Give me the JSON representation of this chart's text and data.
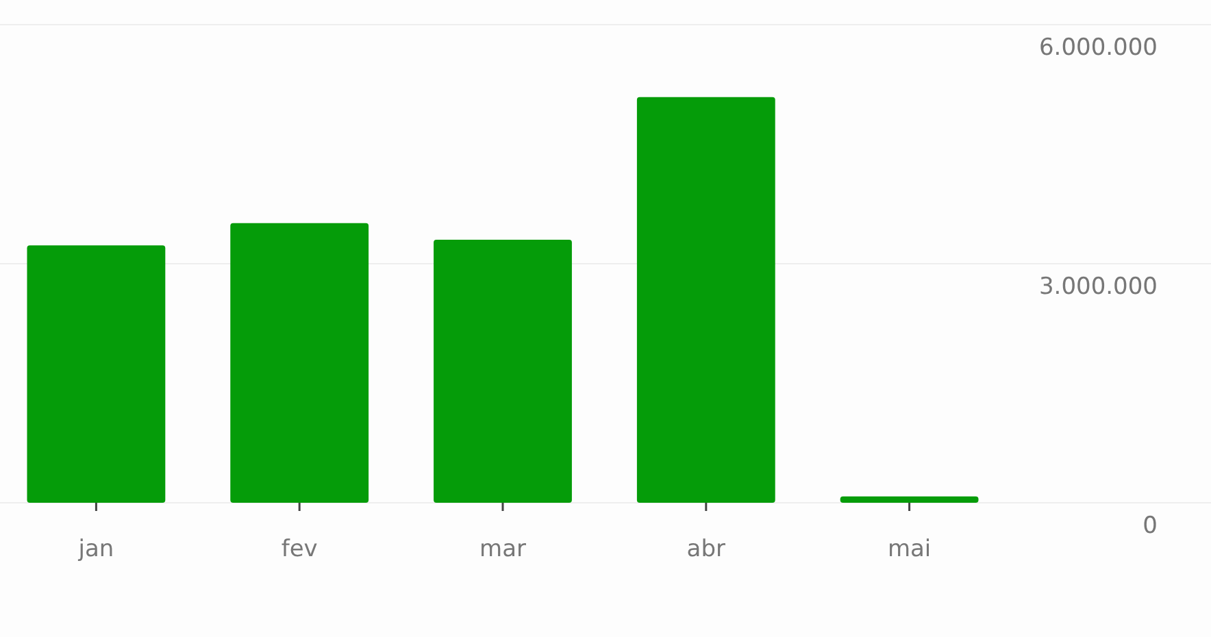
{
  "chart_data": {
    "type": "bar",
    "categories": [
      "jan",
      "fev",
      "mar",
      "abr",
      "mai"
    ],
    "values": [
      3230000,
      3510000,
      3300000,
      5090000,
      80000
    ],
    "color": "#059c09",
    "ylim": [
      0,
      6000000
    ],
    "yticks": [
      {
        "value": 0,
        "label": "0"
      },
      {
        "value": 3000000,
        "label": "3.000.000"
      },
      {
        "value": 6000000,
        "label": "6.000.000"
      }
    ],
    "grid": "y"
  }
}
